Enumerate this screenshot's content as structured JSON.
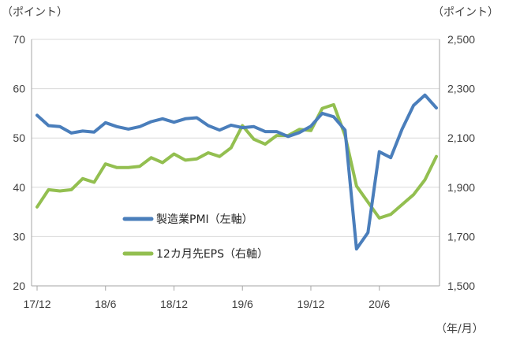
{
  "chart_data": {
    "type": "line",
    "left_axis_unit": "（ポイント）",
    "right_axis_unit": "（ポイント）",
    "x_unit": "（年/月）",
    "left_ylim": [
      20,
      70
    ],
    "left_yticks": [
      "20",
      "30",
      "40",
      "50",
      "60",
      "70"
    ],
    "right_ylim": [
      1500,
      2500
    ],
    "right_yticks": [
      "1,500",
      "1,700",
      "1,900",
      "2,100",
      "2,300",
      "2,500"
    ],
    "x_tick_labels": [
      "17/12",
      "18/6",
      "18/12",
      "19/6",
      "19/12",
      "20/6"
    ],
    "x_tick_indices": [
      0,
      6,
      12,
      18,
      24,
      30
    ],
    "grid": "horizontal",
    "series": [
      {
        "name": "製造業PMI（左軸）",
        "axis": "left",
        "color": "#4a7ebb",
        "values": [
          54.6,
          52.5,
          52.3,
          51.0,
          51.4,
          51.2,
          53.1,
          52.3,
          51.8,
          52.3,
          53.3,
          53.9,
          53.2,
          53.9,
          54.1,
          52.5,
          51.6,
          52.6,
          52.1,
          52.3,
          51.3,
          51.3,
          50.3,
          51.1,
          52.4,
          55.0,
          54.3,
          51.6,
          27.5,
          30.8,
          47.2,
          46.0,
          51.8,
          56.6,
          58.7,
          56.1
        ]
      },
      {
        "name": "12カ月先EPS（右軸）",
        "axis": "right",
        "color": "#93bf50",
        "values": [
          1820,
          1890,
          1885,
          1890,
          1935,
          1920,
          1995,
          1980,
          1980,
          1985,
          2020,
          2000,
          2035,
          2010,
          2015,
          2040,
          2025,
          2060,
          2150,
          2095,
          2075,
          2110,
          2110,
          2135,
          2130,
          2220,
          2235,
          2110,
          1905,
          1840,
          1775,
          1790,
          1830,
          1870,
          1930,
          2025
        ]
      }
    ]
  }
}
